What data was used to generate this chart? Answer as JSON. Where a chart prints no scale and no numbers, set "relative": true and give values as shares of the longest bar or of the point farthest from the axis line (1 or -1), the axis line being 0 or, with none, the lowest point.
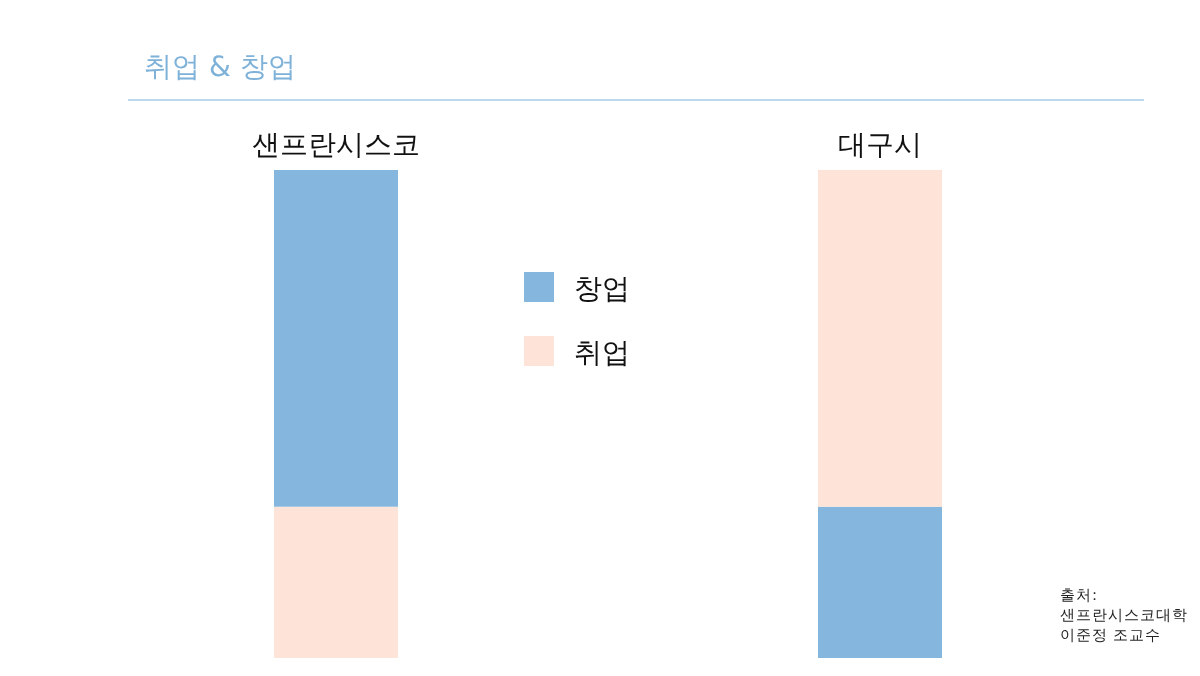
{
  "chart_data": {
    "type": "bar",
    "title": "취업 & 창업",
    "categories": [
      "샌프란시스코",
      "대구시"
    ],
    "stacked": true,
    "relative": true,
    "legend": "top",
    "series": [
      {
        "name": "창업",
        "color": "#85b7de",
        "values": [
          null,
          0.31
        ]
      },
      {
        "name": "취업",
        "color": "#fde3d8",
        "values": [
          0.31,
          0.69
        ]
      },
      {
        "color": "#85b7de",
        "values": [
          0.69,
          null
        ]
      }
    ],
    "annotations": [
      "출처:\n샌프란시스코대학\n이준정 조교수"
    ]
  }
}
